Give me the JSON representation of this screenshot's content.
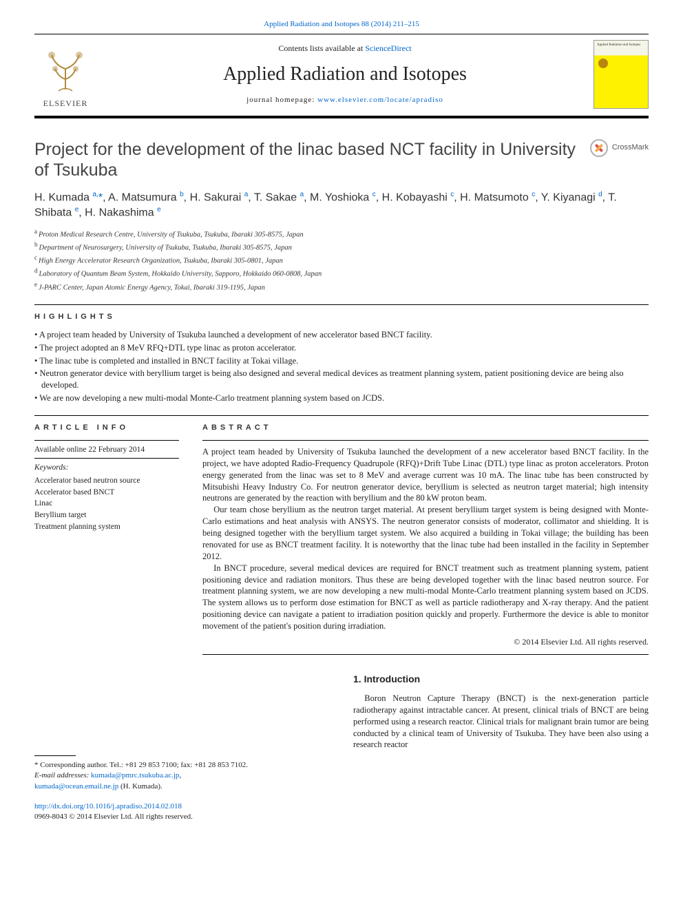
{
  "top_citation": {
    "text": "Applied Radiation and Isotopes 88 (2014) 211–215",
    "link_color": "#0066cc"
  },
  "masthead": {
    "contents_prefix": "Contents lists available at ",
    "contents_link": "ScienceDirect",
    "journal_title": "Applied Radiation and Isotopes",
    "homepage_prefix": "journal homepage: ",
    "homepage_link": "www.elsevier.com/locate/apradiso",
    "publisher_word": "ELSEVIER",
    "cover_label": "Applied Radiation and Isotopes"
  },
  "crossmark_label": "CrossMark",
  "article": {
    "title": "Project for the development of the linac based NCT facility in University of Tsukuba",
    "authors_html": "H. Kumada <sup>a,</sup><span class='star'>*</span>, A. Matsumura <sup>b</sup>, H. Sakurai <sup>a</sup>, T. Sakae <sup>a</sup>, M. Yoshioka <sup>c</sup>, H. Kobayashi <sup>c</sup>, H. Matsumoto <sup>c</sup>, Y. Kiyanagi <sup>d</sup>, T. Shibata <sup>e</sup>, H. Nakashima <sup>e</sup>",
    "affiliations": [
      {
        "key": "a",
        "text": "Proton Medical Research Centre, University of Tsukuba, Tsukuba, Ibaraki 305-8575, Japan"
      },
      {
        "key": "b",
        "text": "Department of Neurosurgery, University of Tsukuba, Tsukuba, Ibaraki 305-8575, Japan"
      },
      {
        "key": "c",
        "text": "High Energy Accelerator Research Organization, Tsukuba, Ibaraki 305-0801, Japan"
      },
      {
        "key": "d",
        "text": "Laboratory of Quantum Beam System, Hokkaido University, Sapporo, Hokkaido 060-0808, Japan"
      },
      {
        "key": "e",
        "text": "J-PARC Center, Japan Atomic Energy Agency, Tokai, Ibaraki 319-1195, Japan"
      }
    ]
  },
  "highlights": {
    "label": "HIGHLIGHTS",
    "items": [
      "A project team headed by University of Tsukuba launched a development of new accelerator based BNCT facility.",
      "The project adopted an 8 MeV RFQ+DTL type linac as proton accelerator.",
      "The linac tube is completed and installed in BNCT facility at Tokai village.",
      "Neutron generator device with beryllium target is being also designed and several medical devices as treatment planning system, patient positioning device are being also developed.",
      "We are now developing a new multi-modal Monte-Carlo treatment planning system based on JCDS."
    ]
  },
  "article_info": {
    "label": "ARTICLE INFO",
    "online": "Available online 22 February 2014",
    "keywords_label": "Keywords:",
    "keywords": [
      "Accelerator based neutron source",
      "Accelerator based BNCT",
      "Linac",
      "Beryllium target",
      "Treatment planning system"
    ]
  },
  "abstract": {
    "label": "ABSTRACT",
    "paragraphs": [
      "A project team headed by University of Tsukuba launched the development of a new accelerator based BNCT facility. In the project, we have adopted Radio-Frequency Quadrupole (RFQ)+Drift Tube Linac (DTL) type linac as proton accelerators. Proton energy generated from the linac was set to 8 MeV and average current was 10 mA. The linac tube has been constructed by Mitsubishi Heavy Industry Co. For neutron generator device, beryllium is selected as neutron target material; high intensity neutrons are generated by the reaction with beryllium and the 80 kW proton beam.",
      "Our team chose beryllium as the neutron target material. At present beryllium target system is being designed with Monte-Carlo estimations and heat analysis with ANSYS. The neutron generator consists of moderator, collimator and shielding. It is being designed together with the beryllium target system. We also acquired a building in Tokai village; the building has been renovated for use as BNCT treatment facility. It is noteworthy that the linac tube had been installed in the facility in September 2012.",
      "In BNCT procedure, several medical devices are required for BNCT treatment such as treatment planning system, patient positioning device and radiation monitors. Thus these are being developed together with the linac based neutron source. For treatment planning system, we are now developing a new multi-modal Monte-Carlo treatment planning system based on JCDS. The system allows us to perform dose estimation for BNCT as well as particle radiotherapy and X-ray therapy. And the patient positioning device can navigate a patient to irradiation position quickly and properly. Furthermore the device is able to monitor movement of the patient's position during irradiation."
    ],
    "copyright": "© 2014 Elsevier Ltd. All rights reserved."
  },
  "intro": {
    "heading": "1.  Introduction",
    "paragraph": "Boron Neutron Capture Therapy (BNCT) is the next-generation particle radiotherapy against intractable cancer. At present, clinical trials of BNCT are being performed using a research reactor. Clinical trials for malignant brain tumor are being conducted by a clinical team of University of Tsukuba. They have been also using a research reactor"
  },
  "footnotes": {
    "corr": "* Corresponding author. Tel.: +81 29 853 7100; fax: +81 28 853 7102.",
    "email_label": "E-mail addresses: ",
    "email1": "kumada@pmrc.tsukuba.ac.jp",
    "email_sep": ", ",
    "email2": "kumada@ocean.email.ne.jp",
    "email_suffix": " (H. Kumada)."
  },
  "doi": {
    "link": "http://dx.doi.org/10.1016/j.apradiso.2014.02.018",
    "issn_line": "0969-8043 © 2014 Elsevier Ltd. All rights reserved."
  },
  "colors": {
    "link": "#0066cc",
    "text": "#222222",
    "rule": "#000000",
    "cover_yellow": "#fff200"
  },
  "typography": {
    "body_pt": 12.5,
    "title_pt": 25,
    "journal_title_pt": 28,
    "affil_pt": 10.5,
    "footnote_pt": 11
  }
}
